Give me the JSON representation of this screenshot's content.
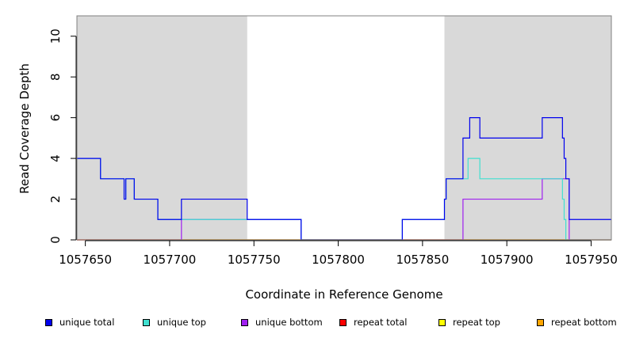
{
  "chart_data": {
    "type": "line",
    "title": "",
    "xlabel": "Coordinate in Reference Genome",
    "ylabel": "Read Coverage Depth",
    "xlim": [
      1057645,
      1057962
    ],
    "ylim": [
      0,
      11
    ],
    "xticks": [
      1057650,
      1057700,
      1057750,
      1057800,
      1057850,
      1057900,
      1057950
    ],
    "xtick_labels": [
      "1057650",
      "1057700",
      "1057750",
      "1057800",
      "1057850",
      "1057900",
      "1057950"
    ],
    "yticks": [
      0,
      2,
      4,
      6,
      8,
      10
    ],
    "ytick_labels": [
      "0",
      "2",
      "4",
      "6",
      "8",
      "10"
    ],
    "shaded_regions": [
      [
        1057645,
        1057746
      ],
      [
        1057863,
        1057962
      ]
    ],
    "shade_color": "#d9d9d9",
    "grid": false,
    "legend_position": "bottom",
    "series": [
      {
        "name": "unique total",
        "color": "#0000ee",
        "step": [
          [
            1057645,
            4
          ],
          [
            1057659,
            3
          ],
          [
            1057673,
            2
          ],
          [
            1057674,
            3
          ],
          [
            1057679,
            2
          ],
          [
            1057693,
            1
          ],
          [
            1057707,
            2
          ],
          [
            1057746,
            1
          ],
          [
            1057778,
            0
          ],
          [
            1057838,
            1
          ],
          [
            1057863,
            2
          ],
          [
            1057864,
            3
          ],
          [
            1057874,
            5
          ],
          [
            1057878,
            6
          ],
          [
            1057884,
            5
          ],
          [
            1057921,
            6
          ],
          [
            1057933,
            5
          ],
          [
            1057934,
            4
          ],
          [
            1057935,
            3
          ],
          [
            1057937,
            1
          ],
          [
            1057962,
            1
          ]
        ]
      },
      {
        "name": "unique top",
        "color": "#40e0d0",
        "step": [
          [
            1057645,
            4
          ],
          [
            1057659,
            3
          ],
          [
            1057673,
            2
          ],
          [
            1057674,
            3
          ],
          [
            1057679,
            2
          ],
          [
            1057693,
            1
          ],
          [
            1057746,
            1
          ],
          [
            1057778,
            0
          ],
          [
            1057838,
            1
          ],
          [
            1057863,
            2
          ],
          [
            1057864,
            3
          ],
          [
            1057877,
            4
          ],
          [
            1057884,
            3
          ],
          [
            1057933,
            2
          ],
          [
            1057934,
            1
          ],
          [
            1057935,
            0
          ],
          [
            1057962,
            0
          ]
        ]
      },
      {
        "name": "unique bottom",
        "color": "#a020f0",
        "step": [
          [
            1057645,
            0
          ],
          [
            1057707,
            1
          ],
          [
            1057746,
            1
          ],
          [
            1057778,
            0
          ],
          [
            1057874,
            2
          ],
          [
            1057921,
            3
          ],
          [
            1057937,
            0
          ],
          [
            1057962,
            0
          ]
        ]
      },
      {
        "name": "repeat total",
        "color": "#ff0000",
        "step": [
          [
            1057645,
            0
          ],
          [
            1057962,
            0
          ]
        ]
      },
      {
        "name": "repeat top",
        "color": "#ffff00",
        "step": [
          [
            1057645,
            0
          ],
          [
            1057962,
            0
          ]
        ]
      },
      {
        "name": "repeat bottom",
        "color": "#ffa500",
        "step": [
          [
            1057645,
            0
          ],
          [
            1057962,
            0
          ]
        ]
      }
    ]
  },
  "legend": {
    "items": [
      {
        "label": "unique total",
        "color": "#0000ee"
      },
      {
        "label": "unique top",
        "color": "#40e0d0"
      },
      {
        "label": "unique bottom",
        "color": "#a020f0"
      },
      {
        "label": "repeat total",
        "color": "#ff0000"
      },
      {
        "label": "repeat top",
        "color": "#ffff00"
      },
      {
        "label": "repeat bottom",
        "color": "#ffa500"
      }
    ]
  }
}
